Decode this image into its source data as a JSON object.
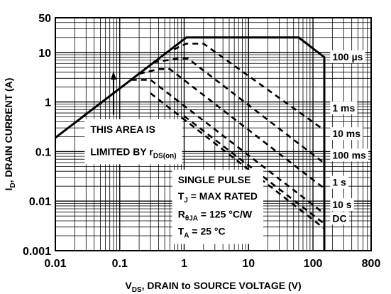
{
  "chart_data": {
    "type": "line",
    "xlabel": {
      "pre": "V",
      "sub": "DS",
      "post": ", DRAIN to SOURCE VOLTAGE (V)"
    },
    "ylabel": {
      "pre": "I",
      "sub": "D",
      "post": ", DRAIN CURRENT (A)"
    },
    "x_scale": "log",
    "y_scale": "log",
    "xlim": [
      0.01,
      800
    ],
    "ylim": [
      0.001,
      50
    ],
    "grid": true,
    "x_ticks": [
      {
        "value": 0.01,
        "label": "0.01"
      },
      {
        "value": 0.1,
        "label": "0.1"
      },
      {
        "value": 1,
        "label": "1"
      },
      {
        "value": 10,
        "label": "10"
      },
      {
        "value": 100,
        "label": "100"
      },
      {
        "value": 800,
        "label": "800"
      }
    ],
    "y_ticks": [
      {
        "value": 0.001,
        "label": "0.001"
      },
      {
        "value": 0.01,
        "label": "0.01"
      },
      {
        "value": 0.1,
        "label": "0.1"
      },
      {
        "value": 1,
        "label": "1"
      },
      {
        "value": 10,
        "label": "10"
      },
      {
        "value": 50,
        "label": "50"
      }
    ],
    "series": [
      {
        "name": "100 µs",
        "style": "solid",
        "points": [
          [
            0.01,
            0.19
          ],
          [
            1.08,
            20
          ],
          [
            60,
            20
          ],
          [
            150,
            8
          ],
          [
            150,
            0.001
          ]
        ]
      },
      {
        "name": "1 ms",
        "style": "dashed",
        "points": [
          [
            0.5,
            9.5
          ],
          [
            1.08,
            15
          ],
          [
            2.0,
            15
          ],
          [
            150,
            0.27
          ]
        ]
      },
      {
        "name": "10 ms",
        "style": "dashed",
        "points": [
          [
            0.33,
            6.3
          ],
          [
            0.8,
            7.5
          ],
          [
            1.15,
            7.5
          ],
          [
            150,
            0.058
          ]
        ]
      },
      {
        "name": "100 ms",
        "style": "dashed",
        "points": [
          [
            0.2,
            3.7
          ],
          [
            0.4,
            4.6
          ],
          [
            0.6,
            4.6
          ],
          [
            150,
            0.018
          ]
        ]
      },
      {
        "name": "1 s",
        "style": "dashed",
        "points": [
          [
            0.15,
            2.8
          ],
          [
            0.3,
            2.8
          ],
          [
            150,
            0.0056
          ]
        ]
      },
      {
        "name": "10 s",
        "style": "dashed",
        "points": [
          [
            0.3,
            1.5
          ],
          [
            150,
            0.0028
          ]
        ]
      },
      {
        "name": "DC",
        "style": "dashed",
        "points": [
          [
            1.0,
            0.52
          ],
          [
            150,
            0.0035
          ]
        ]
      }
    ],
    "labels": [
      {
        "text": "100 µs",
        "x": 200,
        "y": 8.2
      },
      {
        "text": "1 ms",
        "x": 200,
        "y": 0.76
      },
      {
        "text": "10 ms",
        "x": 200,
        "y": 0.23
      },
      {
        "text": "100 ms",
        "x": 200,
        "y": 0.085
      },
      {
        "text": "1 s",
        "x": 200,
        "y": 0.024
      },
      {
        "text": "10 s",
        "x": 200,
        "y": 0.0085
      },
      {
        "text": "DC",
        "x": 200,
        "y": 0.0045
      }
    ],
    "annotations": {
      "area_note": {
        "line1": "THIS AREA IS",
        "line2_pre": "LIMITED BY r",
        "line2_sub": "DS(on)"
      },
      "conditions": [
        {
          "pre": "SINGLE PULSE",
          "sub": "",
          "post": ""
        },
        {
          "pre": "T",
          "sub": "J",
          "post": " = MAX RATED"
        },
        {
          "pre": "R",
          "sub": "θJA",
          "post": " = 125 °C/W"
        },
        {
          "pre": "T",
          "sub": "A",
          "post": " = 25 °C"
        }
      ]
    },
    "colors": {
      "line": "#000000",
      "grid": "#000000",
      "background": "#ffffff"
    }
  }
}
